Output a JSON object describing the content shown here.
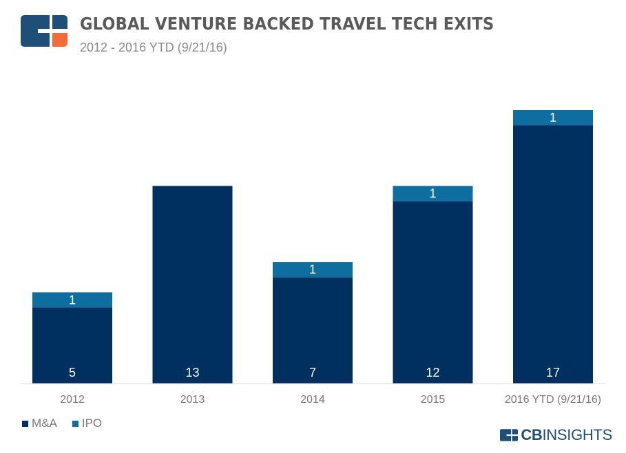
{
  "header": {
    "title": "GLOBAL VENTURE BACKED TRAVEL TECH EXITS",
    "subtitle": "2012 - 2016 YTD (9/21/16)"
  },
  "logo": {
    "icon": "cb-insights-logo-icon",
    "color_primary": "#1f4e79",
    "color_accent": "#f26b3a"
  },
  "legend": {
    "items": [
      {
        "label": "M&A",
        "color": "#00305f"
      },
      {
        "label": "IPO",
        "color": "#0f6ea0"
      }
    ]
  },
  "brand": {
    "cb": "CB",
    "rest": "INSIGHTS",
    "color": "#1f4e79"
  },
  "chart_data": {
    "type": "bar",
    "stacked": true,
    "categories": [
      "2012",
      "2013",
      "2014",
      "2015",
      "2016 YTD (9/21/16)"
    ],
    "series": [
      {
        "name": "M&A",
        "values": [
          5,
          13,
          7,
          12,
          17
        ],
        "labels": [
          "5",
          "13",
          "7",
          "12",
          "17"
        ],
        "color": "#00305f"
      },
      {
        "name": "IPO",
        "values": [
          1,
          0,
          1,
          1,
          1
        ],
        "labels": [
          "1",
          "",
          "1",
          "1",
          "1"
        ],
        "color": "#0f6ea0"
      }
    ],
    "title": "GLOBAL VENTURE BACKED TRAVEL TECH EXITS",
    "subtitle": "2012 - 2016 YTD (9/21/16)",
    "xlabel": "",
    "ylabel": "",
    "ylim": [
      0,
      18
    ],
    "grid": false,
    "y_axis_visible": false,
    "legend_position": "bottom-left"
  }
}
